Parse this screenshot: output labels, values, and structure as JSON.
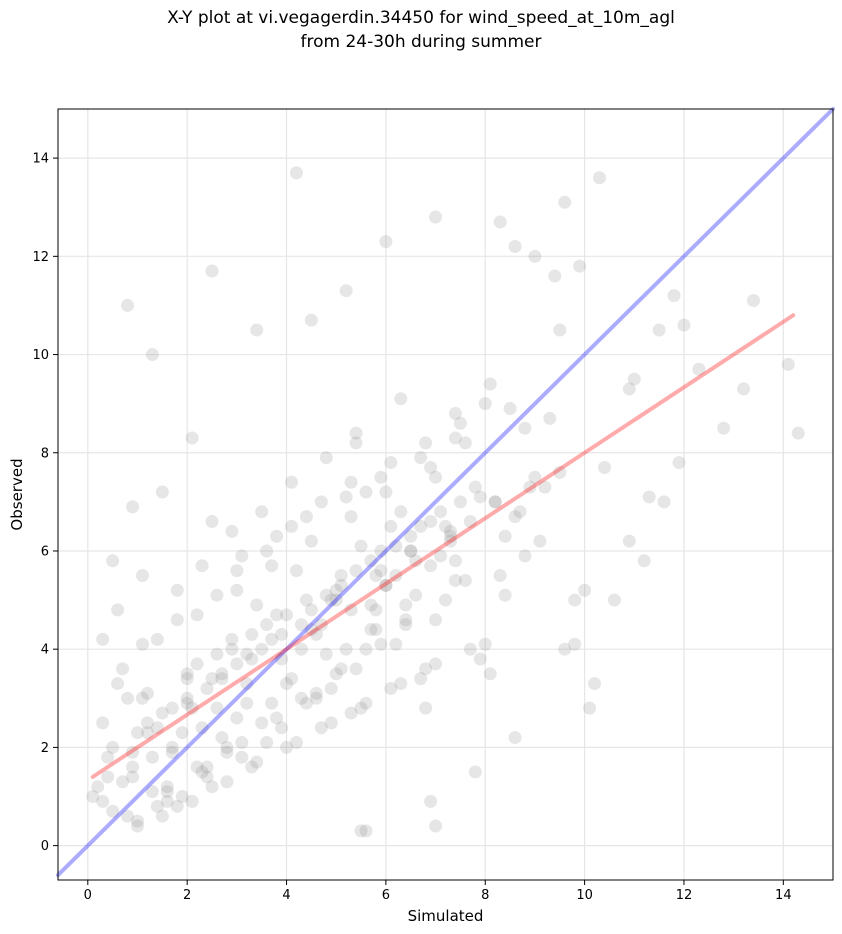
{
  "chart_data": {
    "type": "scatter",
    "title_line1": "X-Y plot at vi.vegagerdin.34450 for wind_speed_at_10m_agl",
    "title_line2": "from 24-30h during summer",
    "xlabel": "Simulated",
    "ylabel": "Observed",
    "xlim": [
      -0.6,
      15.0
    ],
    "ylim": [
      -0.7,
      15.0
    ],
    "xticks": [
      0,
      2,
      4,
      6,
      8,
      10,
      12,
      14
    ],
    "yticks": [
      0,
      2,
      4,
      6,
      8,
      10,
      12,
      14
    ],
    "grid": true,
    "point_color": "#808080",
    "identity_line": {
      "color": "#0000ff",
      "x": [
        -0.6,
        15.0
      ],
      "y": [
        -0.6,
        15.0
      ]
    },
    "fit_line": {
      "color": "#ff0000",
      "x": [
        0.1,
        14.2
      ],
      "y": [
        1.4,
        10.8
      ]
    },
    "x": [
      0.8,
      1.3,
      2.5,
      4.2,
      10.3,
      9.6,
      13.4,
      14.1,
      14.3,
      12.0,
      13.2,
      11.5,
      11.9,
      12.8,
      10.6,
      10.9,
      11.2,
      11.6,
      11.8,
      9.5,
      9.0,
      9.4,
      8.3,
      8.6,
      7.0,
      6.0,
      5.2,
      4.5,
      3.4,
      2.1,
      1.5,
      0.9,
      0.5,
      0.3,
      0.6,
      1.1,
      1.8,
      2.3,
      2.9,
      3.5,
      4.1,
      4.8,
      5.4,
      6.3,
      7.4,
      8.1,
      8.8,
      9.3,
      9.6,
      10.2,
      7.3,
      6.5,
      5.9,
      5.8,
      5.6,
      5.5,
      6.9,
      7.0,
      7.8,
      8.6,
      9.8,
      10.1,
      11.3,
      11.0,
      10.4,
      12.3,
      10.9,
      9.9,
      5.4,
      5.6,
      6.1,
      7.4,
      8.6,
      0.4,
      1.0,
      1.6,
      2.2,
      2.8,
      3.0,
      3.6,
      4.4,
      4.9,
      5.3,
      6.7,
      6.8,
      7.9,
      8.1,
      0.7,
      1.2,
      2.0,
      2.6,
      3.3,
      3.8,
      4.3,
      4.7,
      5.0,
      5.7,
      6.2,
      6.6,
      7.1,
      7.6,
      8.4,
      1.4,
      1.9,
      2.4,
      2.7,
      3.1,
      3.9,
      4.6,
      5.1,
      5.9,
      6.4,
      0.2,
      0.5,
      0.9,
      1.3,
      1.7,
      2.1,
      2.5,
      3.2,
      3.7,
      4.0,
      4.5,
      5.2,
      5.8,
      6.0,
      6.9,
      7.3,
      7.7,
      8.2,
      8.9,
      9.5,
      0.3,
      0.8,
      1.5,
      2.2,
      2.9,
      3.4,
      4.2,
      4.9,
      5.5,
      6.3,
      7.0,
      0.6,
      1.1,
      1.8,
      2.6,
      3.0,
      3.6,
      4.1,
      4.7,
      5.3,
      6.1,
      6.8,
      7.5,
      8.0,
      1.0,
      1.6,
      2.3,
      2.8,
      3.5,
      4.3,
      5.0,
      5.6,
      6.4,
      7.2,
      8.3,
      0.4,
      0.9,
      1.4,
      2.0,
      2.7,
      3.3,
      3.9,
      4.5,
      5.1,
      5.7,
      6.5,
      7.1,
      7.8,
      9.1,
      10.0,
      2.5,
      3.1,
      3.8,
      4.4,
      5.2,
      5.9,
      6.7,
      7.4,
      8.5,
      1.2,
      1.7,
      2.4,
      3.0,
      3.7,
      4.0,
      4.8,
      5.4,
      6.2,
      6.9,
      7.9,
      0.1,
      0.7,
      1.3,
      1.9,
      2.6,
      3.2,
      3.9,
      4.6,
      5.3,
      6.0,
      6.6,
      7.3,
      8.7,
      9.2,
      9.8,
      1.5,
      2.1,
      2.8,
      3.4,
      4.2,
      4.9,
      5.6,
      6.3,
      7.0,
      8.0,
      1.0,
      1.8,
      2.5,
      3.3,
      4.0,
      4.7,
      5.5,
      6.1,
      6.8,
      7.7,
      0.5,
      1.2,
      2.0,
      2.7,
      3.5,
      4.3,
      5.0,
      5.8,
      6.5,
      7.2,
      8.2,
      9.0,
      0.8,
      1.6,
      2.4,
      3.1,
      3.8,
      4.6,
      5.4,
      6.2,
      7.0,
      8.4,
      1.4,
      2.2,
      3.0,
      3.7,
      4.5,
      5.3,
      6.0,
      6.9,
      7.6,
      0.3,
      0.9,
      1.7,
      2.3,
      3.2,
      4.1,
      4.8,
      5.7,
      6.4,
      7.4,
      8.8,
      1.1,
      2.0,
      2.9,
      3.6,
      4.4,
      5.1,
      5.9,
      6.7,
      7.5
    ],
    "y": [
      11.0,
      10.0,
      11.7,
      13.7,
      13.6,
      13.1,
      11.1,
      9.8,
      8.4,
      10.6,
      9.3,
      10.5,
      7.8,
      8.5,
      5.0,
      6.2,
      5.8,
      7.0,
      11.2,
      10.5,
      12.0,
      11.6,
      12.7,
      12.2,
      12.8,
      12.3,
      11.3,
      10.7,
      10.5,
      8.3,
      7.2,
      6.9,
      5.8,
      4.2,
      4.8,
      5.5,
      5.2,
      5.7,
      6.4,
      6.8,
      7.4,
      7.9,
      8.4,
      9.1,
      8.8,
      9.4,
      8.5,
      8.7,
      4.0,
      3.3,
      6.4,
      6.0,
      5.6,
      4.4,
      0.3,
      0.3,
      0.9,
      0.4,
      1.5,
      2.2,
      4.1,
      2.8,
      7.1,
      9.5,
      7.7,
      9.7,
      9.3,
      11.8,
      8.2,
      7.2,
      6.5,
      5.8,
      6.7,
      1.8,
      2.3,
      1.2,
      1.6,
      1.9,
      2.6,
      2.1,
      2.9,
      3.2,
      2.7,
      3.4,
      2.8,
      3.8,
      3.5,
      3.6,
      3.1,
      3.4,
      3.9,
      4.3,
      4.7,
      4.0,
      4.5,
      5.2,
      4.9,
      5.5,
      5.1,
      5.9,
      5.4,
      6.3,
      0.8,
      1.0,
      1.4,
      2.2,
      1.8,
      2.4,
      3.0,
      3.6,
      4.1,
      4.6,
      1.2,
      0.7,
      1.6,
      1.1,
      2.0,
      2.8,
      3.4,
      3.9,
      2.9,
      3.3,
      4.4,
      4.0,
      4.8,
      5.3,
      5.7,
      6.2,
      6.6,
      7.0,
      7.3,
      7.6,
      2.5,
      3.0,
      2.7,
      3.7,
      4.2,
      4.9,
      5.6,
      5.0,
      6.1,
      6.8,
      7.5,
      3.3,
      4.1,
      4.6,
      5.1,
      5.6,
      6.0,
      6.5,
      7.0,
      7.4,
      7.8,
      8.2,
      8.6,
      9.0,
      0.5,
      0.9,
      1.5,
      2.0,
      2.5,
      3.0,
      3.5,
      4.0,
      4.5,
      5.0,
      5.5,
      1.4,
      1.9,
      2.4,
      2.9,
      3.4,
      3.8,
      4.3,
      4.8,
      5.3,
      5.8,
      6.3,
      6.8,
      7.3,
      6.2,
      5.2,
      6.6,
      5.9,
      6.3,
      6.7,
      7.1,
      7.5,
      7.9,
      8.3,
      8.9,
      2.3,
      2.8,
      3.2,
      3.7,
      4.2,
      4.7,
      5.1,
      5.6,
      6.1,
      6.6,
      7.1,
      1.0,
      1.3,
      1.8,
      2.3,
      2.8,
      3.3,
      3.8,
      4.3,
      4.8,
      5.3,
      5.8,
      6.3,
      6.8,
      7.3,
      5.0,
      0.6,
      0.9,
      1.3,
      1.7,
      2.1,
      2.5,
      2.9,
      3.3,
      3.7,
      4.1,
      0.4,
      0.8,
      1.2,
      1.6,
      2.0,
      2.4,
      2.8,
      3.2,
      3.6,
      4.0,
      2.0,
      2.5,
      3.0,
      3.5,
      4.0,
      4.5,
      5.0,
      5.5,
      6.0,
      6.5,
      7.0,
      7.5,
      0.6,
      1.1,
      1.6,
      2.1,
      2.6,
      3.1,
      3.6,
      4.1,
      4.6,
      5.1,
      4.2,
      4.7,
      5.2,
      5.7,
      6.2,
      6.7,
      7.2,
      7.7,
      8.2,
      0.9,
      1.4,
      1.9,
      2.4,
      2.9,
      3.4,
      3.9,
      4.4,
      4.9,
      5.4,
      5.9,
      3.0,
      3.5,
      4.0,
      4.5,
      5.0,
      5.5,
      6.0,
      6.5,
      7.0
    ]
  }
}
